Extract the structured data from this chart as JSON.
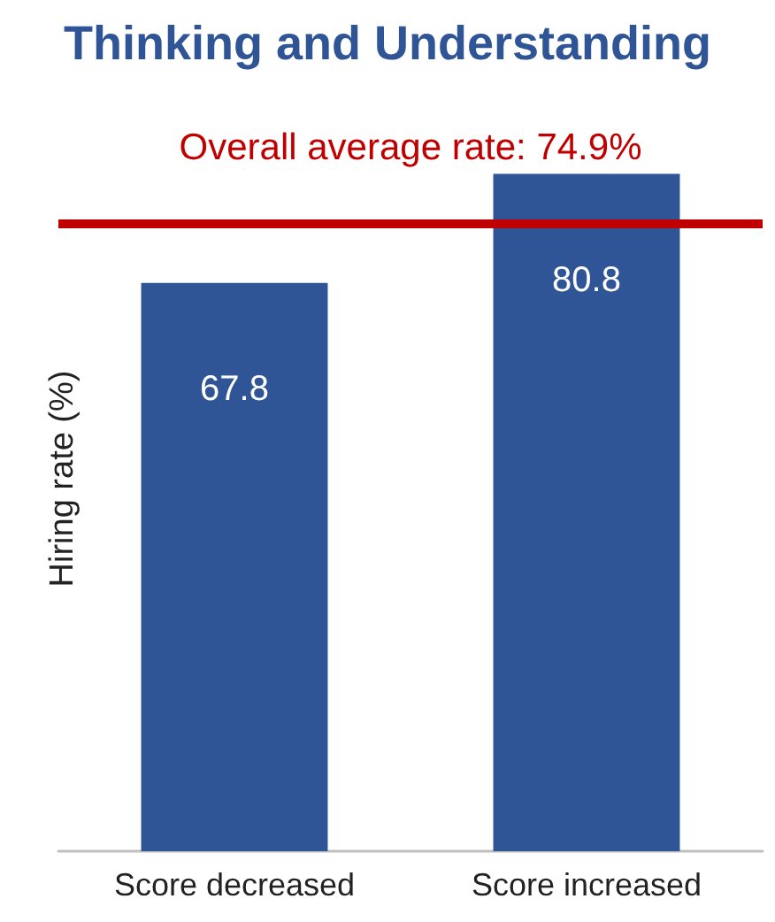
{
  "chart_data": {
    "type": "bar",
    "title": "Thinking and Understanding",
    "ylabel": "Hiring rate (%)",
    "categories": [
      "Score decreased",
      "Score increased"
    ],
    "values": [
      67.8,
      80.8
    ],
    "color": "#2f5597",
    "data_labels": true,
    "ref_lines": [
      {
        "axis": "y",
        "value": 74.9,
        "label": "Overall average rate: 74.9%",
        "color": "#c00000",
        "line_style": "solid"
      }
    ],
    "grid": false,
    "tick_labels": "x"
  }
}
